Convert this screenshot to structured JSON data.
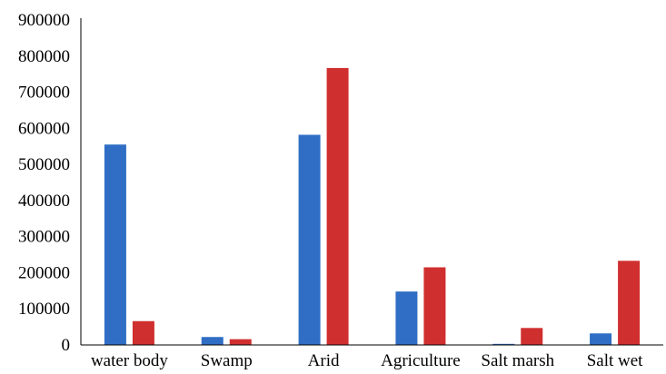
{
  "chart_data": {
    "type": "bar",
    "categories": [
      "water body",
      "Swamp",
      "Arid",
      "Agriculture",
      "Salt marsh",
      "Salt wet"
    ],
    "series": [
      {
        "values": [
          555000,
          22000,
          582000,
          148000,
          3000,
          32000
        ],
        "color": "#2f6ec4"
      },
      {
        "values": [
          66000,
          16000,
          767000,
          215000,
          47000,
          233000
        ],
        "color": "#d02f2f"
      }
    ],
    "yticks": [
      "0",
      "100000",
      "200000",
      "300000",
      "400000",
      "500000",
      "600000",
      "700000",
      "800000",
      "900000"
    ],
    "ylim": [
      0,
      900000
    ],
    "grid": false,
    "legend": "none"
  }
}
